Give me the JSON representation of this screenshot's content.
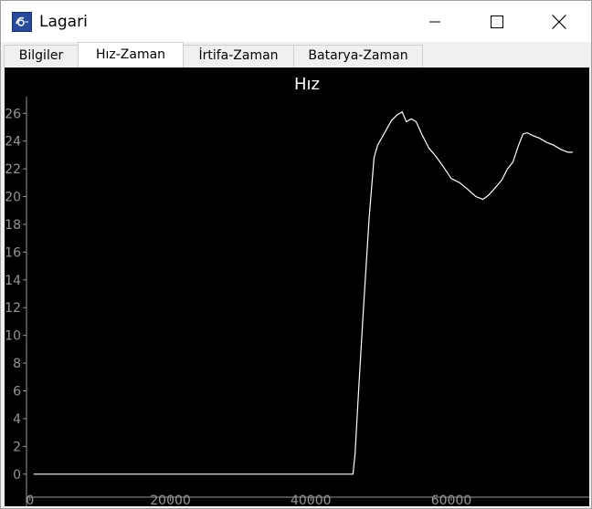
{
  "window": {
    "title": "Lagari",
    "controls": {
      "minimize": "minimize",
      "maximize": "maximize",
      "close": "close"
    }
  },
  "tabs": [
    {
      "label": "Bilgiler",
      "active": false
    },
    {
      "label": "Hız-Zaman",
      "active": true
    },
    {
      "label": "İrtifa-Zaman",
      "active": false
    },
    {
      "label": "Batarya-Zaman",
      "active": false
    }
  ],
  "colors": {
    "plot_background": "#000000",
    "line": "#ffffff",
    "axis_text": "#969696",
    "title_text": "#ffffff"
  },
  "chart_data": {
    "type": "line",
    "title": "Hız",
    "xlabel": "",
    "ylabel": "",
    "xlim": [
      -500,
      79000
    ],
    "ylim": [
      -1,
      27.2
    ],
    "x_ticks": [
      0,
      20000,
      40000,
      60000
    ],
    "y_ticks": [
      0,
      2,
      4,
      6,
      8,
      10,
      12,
      14,
      16,
      18,
      20,
      22,
      24,
      26
    ],
    "grid": false,
    "legend": "none",
    "series": [
      {
        "x": [
          500,
          46000,
          46300,
          46800,
          47500,
          48300,
          49000,
          49500,
          50500,
          51500,
          52300,
          53000,
          53600,
          54300,
          55000,
          55800,
          56800,
          57800,
          58800,
          60000,
          61200,
          62400,
          63500,
          64500,
          65300,
          66200,
          67200,
          68000,
          68800,
          69500,
          70200,
          70800,
          71600,
          72600,
          73600,
          74600,
          75600,
          76600,
          77300
        ],
        "y": [
          0,
          0,
          1.5,
          6,
          12,
          18.5,
          22.8,
          23.7,
          24.6,
          25.5,
          25.9,
          26.1,
          25.4,
          25.6,
          25.4,
          24.5,
          23.5,
          22.9,
          22.2,
          21.3,
          21.0,
          20.5,
          20.0,
          19.8,
          20.1,
          20.6,
          21.2,
          22.0,
          22.5,
          23.6,
          24.5,
          24.6,
          24.4,
          24.2,
          23.9,
          23.7,
          23.4,
          23.2,
          23.2
        ]
      }
    ]
  }
}
